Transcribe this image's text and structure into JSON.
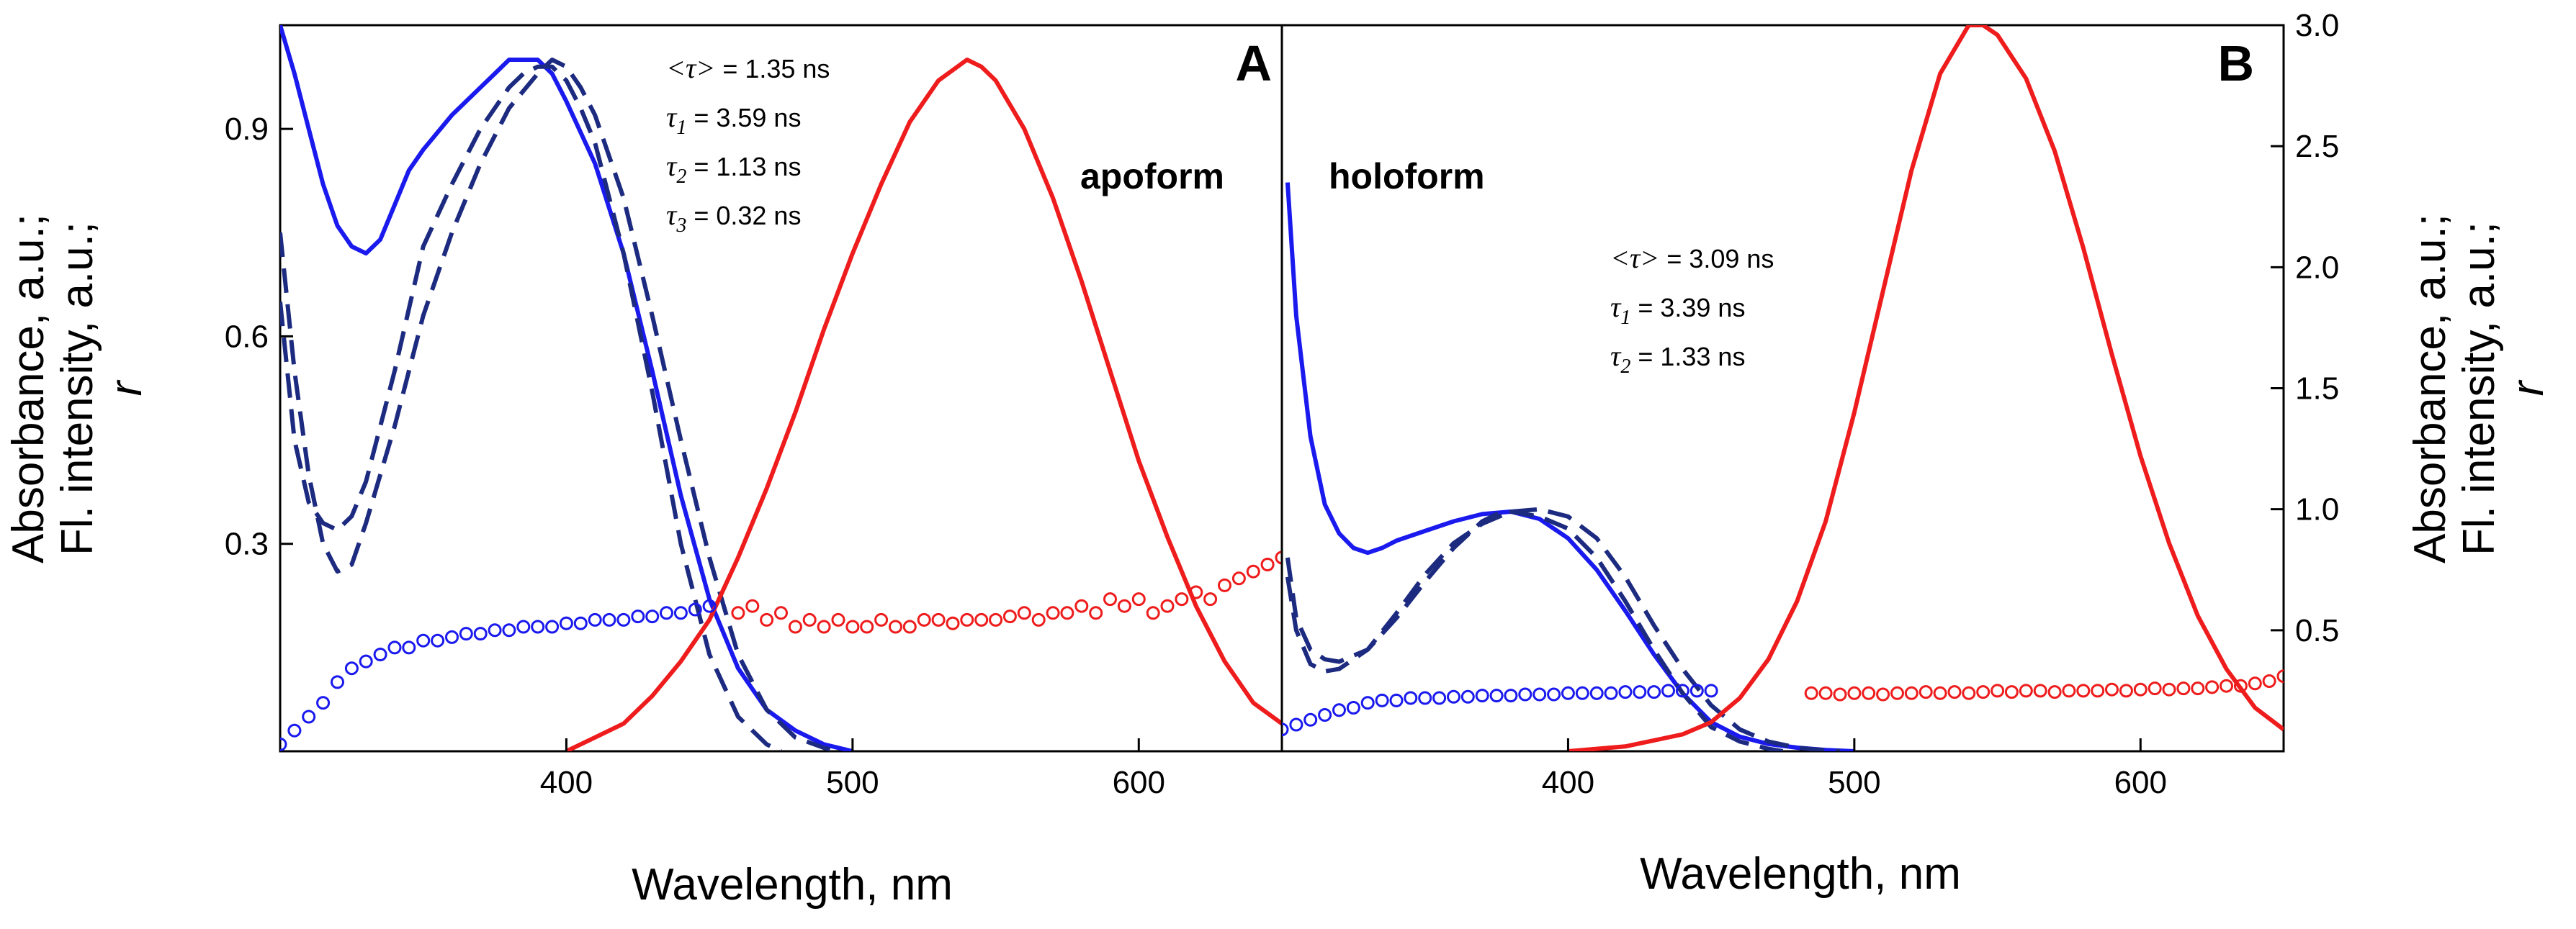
{
  "chart_data": [
    {
      "type": "line",
      "panel": "A",
      "panel_label": "A",
      "form_label": "apoform",
      "xlabel": "Wavelength, nm",
      "ylabel_lines": [
        "Absorbance, a.u.;",
        "Fl. intensity, a.u.;",
        "r"
      ],
      "xlim": [
        300,
        650
      ],
      "ylim": [
        0,
        1.05
      ],
      "xticks": [
        400,
        500,
        600
      ],
      "yticks": [
        0.3,
        0.6,
        0.9
      ],
      "ytick_labels": [
        "0.3",
        "0.6",
        "0.9"
      ],
      "lifetimes": [
        {
          "sym": "<τ>",
          "sub": "",
          "text": " = 1.35 ns"
        },
        {
          "sym": "τ",
          "sub": "1",
          "text": " = 3.59 ns"
        },
        {
          "sym": "τ",
          "sub": "2",
          "text": " = 1.13 ns"
        },
        {
          "sym": "τ",
          "sub": "3",
          "text": " = 0.32 ns"
        }
      ],
      "colors": {
        "blue": "#1a1aee",
        "navy": "#1c2a80",
        "red": "#ee1c1c"
      },
      "series": [
        {
          "style": "solid",
          "color": "blue",
          "x": [
            300,
            305,
            310,
            315,
            320,
            325,
            330,
            335,
            340,
            345,
            350,
            360,
            370,
            375,
            380,
            385,
            390,
            395,
            400,
            410,
            420,
            430,
            440,
            450,
            460,
            470,
            480,
            490,
            500
          ],
          "y": [
            1.05,
            0.98,
            0.9,
            0.82,
            0.76,
            0.73,
            0.72,
            0.74,
            0.79,
            0.84,
            0.87,
            0.92,
            0.96,
            0.98,
            1.0,
            1.0,
            1.0,
            0.98,
            0.94,
            0.85,
            0.72,
            0.55,
            0.37,
            0.22,
            0.12,
            0.06,
            0.03,
            0.01,
            0.0
          ]
        },
        {
          "style": "dashed",
          "color": "navy",
          "x": [
            300,
            305,
            310,
            315,
            320,
            325,
            330,
            340,
            350,
            360,
            370,
            380,
            385,
            390,
            395,
            400,
            405,
            410,
            420,
            430,
            440,
            450,
            460,
            470,
            475
          ],
          "y": [
            0.65,
            0.45,
            0.36,
            0.33,
            0.32,
            0.34,
            0.39,
            0.55,
            0.73,
            0.82,
            0.9,
            0.96,
            0.98,
            0.99,
            0.99,
            0.97,
            0.93,
            0.88,
            0.72,
            0.52,
            0.3,
            0.14,
            0.05,
            0.01,
            0.0
          ]
        },
        {
          "style": "dashed",
          "color": "navy",
          "x": [
            300,
            305,
            310,
            315,
            320,
            325,
            330,
            340,
            350,
            360,
            370,
            380,
            390,
            395,
            400,
            405,
            410,
            420,
            430,
            440,
            450,
            460,
            470,
            480,
            490,
            495
          ],
          "y": [
            0.75,
            0.55,
            0.4,
            0.3,
            0.26,
            0.27,
            0.33,
            0.47,
            0.63,
            0.75,
            0.85,
            0.93,
            0.98,
            1.0,
            0.99,
            0.96,
            0.92,
            0.8,
            0.63,
            0.45,
            0.28,
            0.14,
            0.06,
            0.02,
            0.005,
            0.0
          ]
        },
        {
          "style": "solid",
          "color": "red",
          "x": [
            400,
            410,
            420,
            430,
            440,
            450,
            460,
            470,
            480,
            490,
            500,
            510,
            520,
            530,
            540,
            545,
            550,
            560,
            570,
            580,
            590,
            600,
            610,
            620,
            630,
            640,
            650
          ],
          "y": [
            0.0,
            0.02,
            0.04,
            0.08,
            0.13,
            0.19,
            0.28,
            0.38,
            0.49,
            0.61,
            0.72,
            0.82,
            0.91,
            0.97,
            1.0,
            0.99,
            0.97,
            0.9,
            0.8,
            0.68,
            0.55,
            0.42,
            0.31,
            0.21,
            0.13,
            0.07,
            0.04
          ]
        },
        {
          "style": "circles",
          "color": "blue",
          "x": [
            300,
            305,
            310,
            315,
            320,
            325,
            330,
            335,
            340,
            345,
            350,
            355,
            360,
            365,
            370,
            375,
            380,
            385,
            390,
            395,
            400,
            405,
            410,
            415,
            420,
            425,
            430,
            435,
            440,
            445,
            450
          ],
          "y": [
            0.01,
            0.03,
            0.05,
            0.07,
            0.1,
            0.12,
            0.13,
            0.14,
            0.15,
            0.15,
            0.16,
            0.16,
            0.165,
            0.17,
            0.17,
            0.175,
            0.175,
            0.18,
            0.18,
            0.18,
            0.185,
            0.185,
            0.19,
            0.19,
            0.19,
            0.195,
            0.195,
            0.2,
            0.2,
            0.205,
            0.21
          ]
        },
        {
          "style": "circles",
          "color": "red",
          "x": [
            460,
            465,
            470,
            475,
            480,
            485,
            490,
            495,
            500,
            505,
            510,
            515,
            520,
            525,
            530,
            535,
            540,
            545,
            550,
            555,
            560,
            565,
            570,
            575,
            580,
            585,
            590,
            595,
            600,
            605,
            610,
            615,
            620,
            625,
            630,
            635,
            640,
            645,
            650
          ],
          "y": [
            0.2,
            0.21,
            0.19,
            0.2,
            0.18,
            0.19,
            0.18,
            0.19,
            0.18,
            0.18,
            0.19,
            0.18,
            0.18,
            0.19,
            0.19,
            0.185,
            0.19,
            0.19,
            0.19,
            0.195,
            0.2,
            0.19,
            0.2,
            0.2,
            0.21,
            0.2,
            0.22,
            0.21,
            0.22,
            0.2,
            0.21,
            0.22,
            0.23,
            0.22,
            0.24,
            0.25,
            0.26,
            0.27,
            0.28
          ]
        }
      ]
    },
    {
      "type": "line",
      "panel": "B",
      "panel_label": "B",
      "form_label": "holoform",
      "xlabel": "Wavelength, nm",
      "ylabel_lines": [
        "Absorbance, a.u.;",
        "Fl. intensity, a.u.;",
        "r"
      ],
      "xlim": [
        300,
        650
      ],
      "ylim": [
        0,
        3.0
      ],
      "xticks": [
        400,
        500,
        600
      ],
      "yticks": [
        0.5,
        1.0,
        1.5,
        2.0,
        2.5,
        3.0
      ],
      "ytick_labels": [
        "0.5",
        "1.0",
        "1.5",
        "2.0",
        "2.5",
        "3.0"
      ],
      "lifetimes": [
        {
          "sym": "<τ>",
          "sub": "",
          "text": " = 3.09 ns"
        },
        {
          "sym": "τ",
          "sub": "1",
          "text": " = 3.39 ns"
        },
        {
          "sym": "τ",
          "sub": "2",
          "text": " = 1.33 ns"
        }
      ],
      "colors": {
        "blue": "#1a1aee",
        "navy": "#1c2a80",
        "red": "#ee1c1c"
      },
      "series": [
        {
          "style": "solid",
          "color": "blue",
          "x": [
            302,
            305,
            310,
            315,
            320,
            325,
            330,
            335,
            340,
            350,
            360,
            370,
            380,
            390,
            400,
            410,
            420,
            430,
            440,
            450,
            460,
            470,
            480,
            490,
            500
          ],
          "y": [
            2.35,
            1.8,
            1.3,
            1.02,
            0.9,
            0.84,
            0.82,
            0.84,
            0.87,
            0.91,
            0.95,
            0.98,
            0.99,
            0.96,
            0.88,
            0.75,
            0.58,
            0.4,
            0.24,
            0.12,
            0.06,
            0.03,
            0.015,
            0.005,
            0.0
          ]
        },
        {
          "style": "dashed",
          "color": "navy",
          "x": [
            302,
            305,
            310,
            315,
            320,
            330,
            340,
            350,
            360,
            370,
            375,
            380,
            390,
            400,
            410,
            420,
            430,
            440,
            450,
            460,
            470,
            475
          ],
          "y": [
            0.8,
            0.55,
            0.42,
            0.38,
            0.37,
            0.42,
            0.55,
            0.7,
            0.84,
            0.95,
            0.98,
            0.99,
            0.97,
            0.92,
            0.8,
            0.62,
            0.42,
            0.24,
            0.1,
            0.04,
            0.01,
            0.0
          ]
        },
        {
          "style": "dashed",
          "color": "navy",
          "x": [
            302,
            305,
            310,
            315,
            320,
            330,
            340,
            350,
            360,
            370,
            380,
            390,
            400,
            410,
            420,
            430,
            440,
            450,
            460,
            470,
            480,
            490,
            495
          ],
          "y": [
            0.72,
            0.5,
            0.36,
            0.33,
            0.34,
            0.42,
            0.57,
            0.73,
            0.86,
            0.94,
            0.99,
            1.0,
            0.97,
            0.88,
            0.72,
            0.52,
            0.34,
            0.19,
            0.09,
            0.04,
            0.015,
            0.003,
            0.0
          ]
        },
        {
          "style": "solid",
          "color": "red",
          "x": [
            400,
            420,
            440,
            450,
            460,
            470,
            480,
            490,
            500,
            510,
            520,
            530,
            540,
            545,
            550,
            560,
            570,
            580,
            590,
            600,
            610,
            620,
            630,
            640,
            650
          ],
          "y": [
            0.0,
            0.02,
            0.07,
            0.12,
            0.22,
            0.38,
            0.62,
            0.95,
            1.4,
            1.9,
            2.4,
            2.8,
            3.0,
            3.0,
            2.96,
            2.78,
            2.48,
            2.08,
            1.64,
            1.22,
            0.86,
            0.56,
            0.34,
            0.18,
            0.09
          ]
        },
        {
          "style": "circles",
          "color": "blue",
          "x": [
            300,
            305,
            310,
            315,
            320,
            325,
            330,
            335,
            340,
            345,
            350,
            355,
            360,
            365,
            370,
            375,
            380,
            385,
            390,
            395,
            400,
            405,
            410,
            415,
            420,
            425,
            430,
            435,
            440,
            445,
            450
          ],
          "y": [
            0.09,
            0.11,
            0.13,
            0.15,
            0.17,
            0.18,
            0.2,
            0.21,
            0.21,
            0.22,
            0.22,
            0.22,
            0.225,
            0.225,
            0.23,
            0.23,
            0.23,
            0.235,
            0.235,
            0.235,
            0.24,
            0.24,
            0.24,
            0.24,
            0.245,
            0.245,
            0.245,
            0.25,
            0.25,
            0.25,
            0.25
          ]
        },
        {
          "style": "circles",
          "color": "red",
          "x": [
            485,
            490,
            495,
            500,
            505,
            510,
            515,
            520,
            525,
            530,
            535,
            540,
            545,
            550,
            555,
            560,
            565,
            570,
            575,
            580,
            585,
            590,
            595,
            600,
            605,
            610,
            615,
            620,
            625,
            630,
            635,
            640,
            645,
            650
          ],
          "y": [
            0.24,
            0.24,
            0.235,
            0.24,
            0.24,
            0.235,
            0.24,
            0.24,
            0.245,
            0.24,
            0.245,
            0.24,
            0.245,
            0.25,
            0.245,
            0.25,
            0.25,
            0.245,
            0.25,
            0.25,
            0.25,
            0.255,
            0.25,
            0.255,
            0.26,
            0.255,
            0.26,
            0.26,
            0.265,
            0.27,
            0.27,
            0.28,
            0.29,
            0.31
          ]
        }
      ]
    }
  ]
}
